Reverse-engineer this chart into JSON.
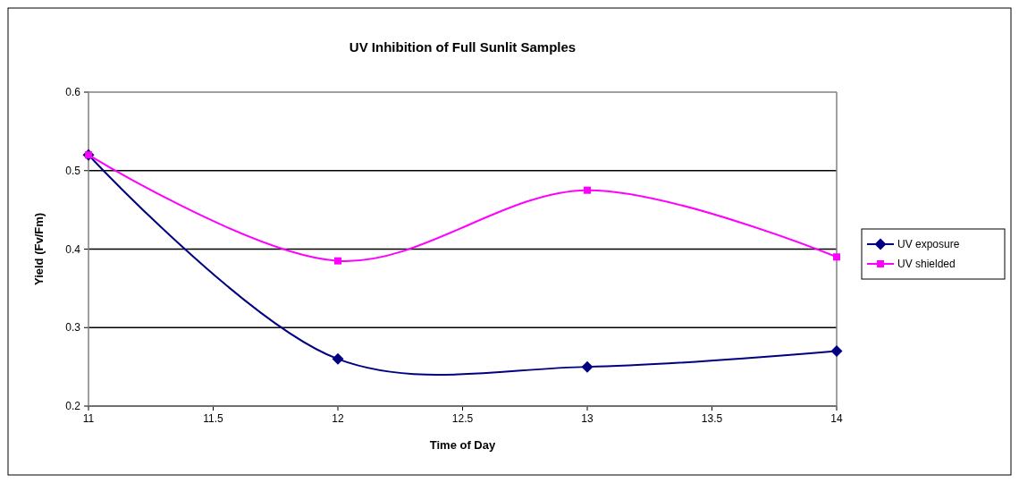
{
  "chart_data": {
    "type": "line",
    "title": "UV Inhibition of Full Sunlit Samples",
    "xlabel": "Time of Day",
    "ylabel": "Yield (Fv/Fm)",
    "x": [
      11,
      12,
      13,
      14
    ],
    "series": [
      {
        "name": "UV exposure",
        "color": "#000080",
        "values": [
          0.52,
          0.26,
          0.25,
          0.27
        ],
        "marker": "diamond"
      },
      {
        "name": "UV shielded",
        "color": "#ff00ff",
        "values": [
          0.52,
          0.385,
          0.475,
          0.39
        ],
        "marker": "square"
      }
    ],
    "xlim": [
      11,
      14
    ],
    "xticks": [
      11,
      11.5,
      12,
      12.5,
      13,
      13.5,
      14
    ],
    "ylim": [
      0.2,
      0.6
    ],
    "yticks": [
      0.2,
      0.3,
      0.4,
      0.5,
      0.6
    ],
    "grid": "y",
    "legend": "right",
    "line_style": "solid"
  }
}
